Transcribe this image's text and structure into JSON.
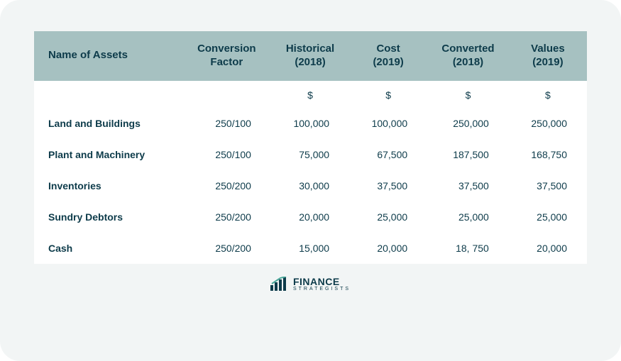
{
  "table": {
    "columns": [
      "Name of Assets",
      "Conversion\nFactor",
      "Historical\n(2018)",
      "Cost\n(2019)",
      "Converted\n(2018)",
      "Values\n(2019)"
    ],
    "currency_row": [
      "",
      "",
      "$",
      "$",
      "$",
      "$"
    ],
    "rows": [
      [
        "Land and Buildings",
        "250/100",
        "100,000",
        "100,000",
        "250,000",
        "250,000"
      ],
      [
        "Plant and Machinery",
        "250/100",
        "75,000",
        "67,500",
        "187,500",
        "168,750"
      ],
      [
        "Inventories",
        "250/200",
        "30,000",
        "37,500",
        "37,500",
        "37,500"
      ],
      [
        "Sundry Debtors",
        "250/200",
        "20,000",
        "25,000",
        "25,000",
        "25,000"
      ],
      [
        "Cash",
        "250/200",
        "15,000",
        "20,000",
        "18, 750",
        "20,000"
      ]
    ],
    "header_bg": "#a6c1c1",
    "text_color": "#0d3b4a",
    "card_bg": "#f2f5f5",
    "body_bg": "#ffffff",
    "header_fontsize": 15,
    "cell_fontsize": 14
  },
  "logo": {
    "main": "FINANCE",
    "sub": "STRATEGISTS",
    "bar_colors": [
      "#0d3b4a",
      "#0d3b4a",
      "#0d3b4a",
      "#0d3b4a"
    ],
    "accent_color": "#4aa89a"
  }
}
